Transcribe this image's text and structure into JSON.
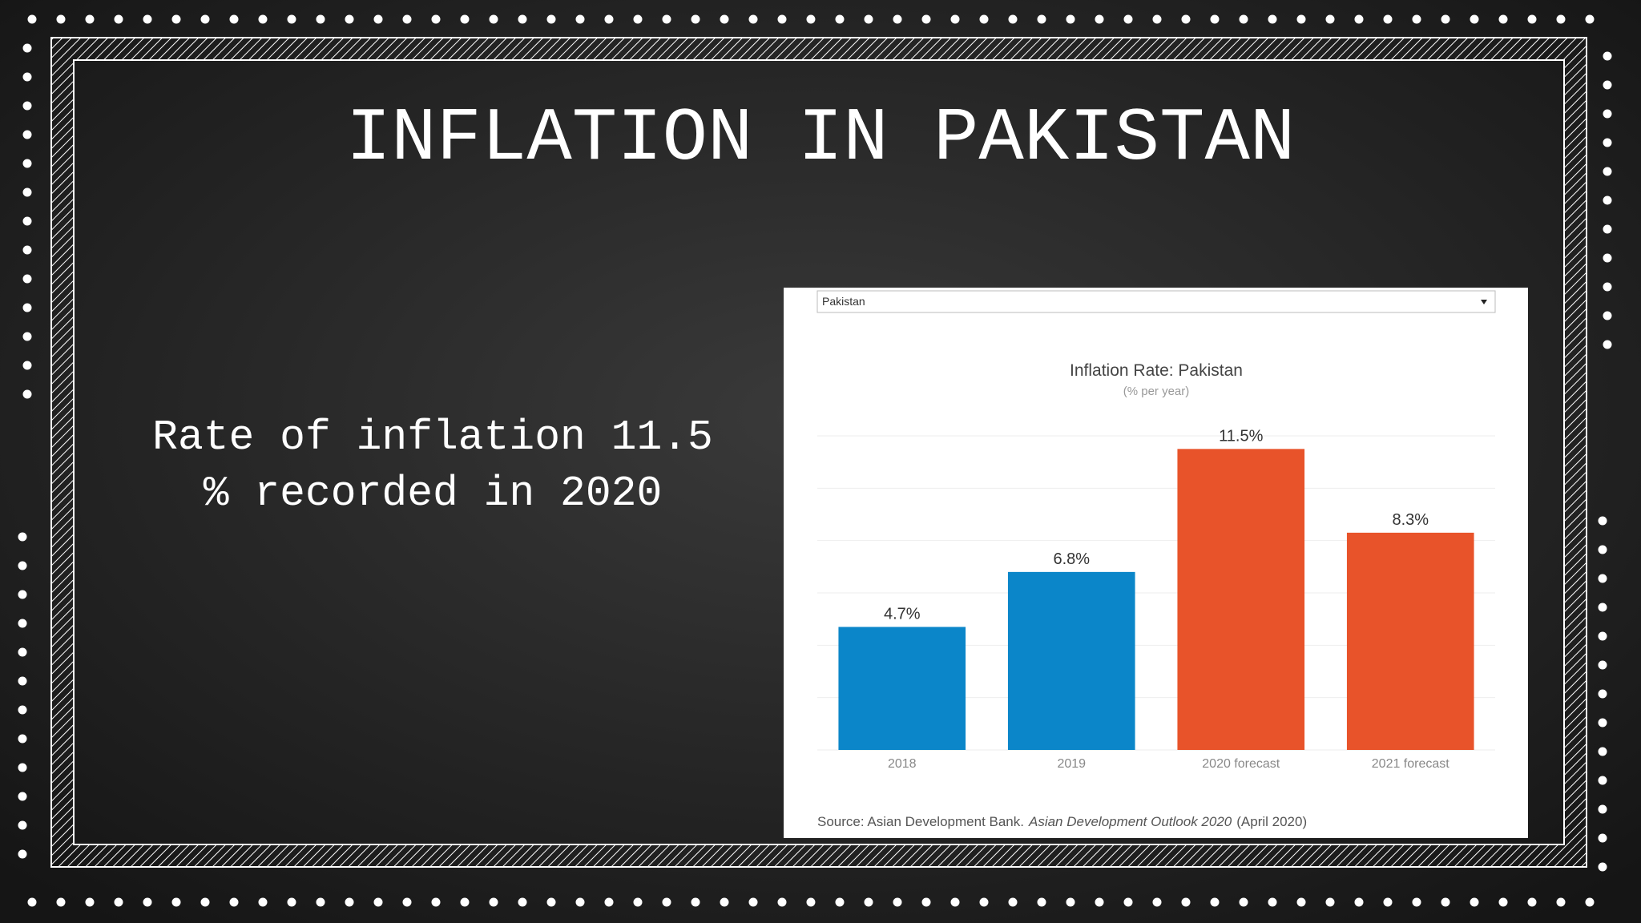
{
  "slide": {
    "title": "INFLATION IN PAKISTAN",
    "body": [
      "Rate of inflation 11.5",
      "% recorded in 2020"
    ]
  },
  "chart_data": {
    "type": "bar",
    "dropdown": "Pakistan",
    "title": "Inflation Rate: Pakistan",
    "subtitle": "(% per year)",
    "categories": [
      "2018",
      "2019",
      "2020 forecast",
      "2021 forecast"
    ],
    "values": [
      4.7,
      6.8,
      11.5,
      8.3
    ],
    "value_labels": [
      "4.7%",
      "6.8%",
      "11.5%",
      "8.3%"
    ],
    "colors": [
      "#0b86c9",
      "#0b86c9",
      "#e8532a",
      "#e8532a"
    ],
    "ylim": [
      0,
      12
    ],
    "yticks": [
      0,
      2,
      4,
      6,
      8,
      10,
      12
    ],
    "grid": true,
    "source": [
      "Source: Asian Development Bank.",
      "Asian Development Outlook 2020",
      "(April 2020)"
    ]
  }
}
